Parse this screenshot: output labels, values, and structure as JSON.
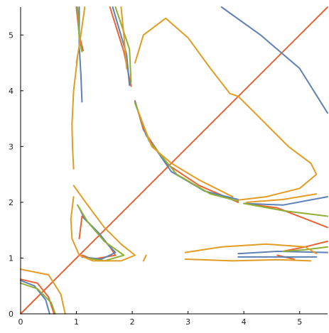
{
  "chart_data": {
    "type": "line",
    "title": "",
    "xlabel": "",
    "ylabel": "",
    "xlim": [
      0,
      5.5
    ],
    "ylim": [
      0,
      5.5
    ],
    "xticks": [
      0,
      1,
      2,
      3,
      4,
      5
    ],
    "yticks": [
      0,
      1,
      2,
      3,
      4,
      5
    ],
    "grid": false,
    "legend": "none",
    "colors": {
      "blue": "#5e81b5",
      "green": "#8fb032",
      "orange": "#e19c24",
      "red": "#eb6235"
    },
    "series": [
      {
        "color": "#eb6235",
        "segments": [
          [
            [
              0.0,
              0.0
            ],
            [
              1.0,
              1.0
            ],
            [
              2.0,
              2.0
            ],
            [
              3.0,
              3.0
            ],
            [
              4.0,
              4.0
            ],
            [
              5.0,
              5.0
            ],
            [
              5.5,
              5.5
            ]
          ],
          [
            [
              0.0,
              0.62
            ],
            [
              0.3,
              0.55
            ],
            [
              0.5,
              0.3
            ],
            [
              0.6,
              0.0
            ]
          ],
          [
            [
              1.0,
              5.5
            ],
            [
              1.05,
              5.0
            ],
            [
              1.12,
              4.72
            ]
          ],
          [
            [
              1.6,
              5.5
            ],
            [
              1.85,
              4.7
            ],
            [
              1.98,
              4.08
            ]
          ],
          [
            [
              2.05,
              3.82
            ],
            [
              2.2,
              3.3
            ],
            [
              2.6,
              2.7
            ],
            [
              3.2,
              2.3
            ],
            [
              3.9,
              2.0
            ]
          ],
          [
            [
              4.0,
              1.98
            ],
            [
              4.6,
              1.9
            ],
            [
              5.5,
              1.55
            ]
          ],
          [
            [
              1.05,
              1.35
            ],
            [
              1.1,
              1.75
            ],
            [
              1.3,
              1.55
            ],
            [
              1.6,
              1.2
            ],
            [
              1.7,
              1.05
            ],
            [
              1.3,
              0.98
            ],
            [
              1.1,
              1.05
            ]
          ],
          [
            [
              4.7,
              1.12
            ],
            [
              5.1,
              1.2
            ],
            [
              5.5,
              1.3
            ]
          ],
          [
            [
              4.6,
              1.05
            ],
            [
              4.9,
              0.98
            ]
          ]
        ]
      },
      {
        "color": "#5e81b5",
        "segments": [
          [
            [
              0.0,
              0.6
            ],
            [
              0.25,
              0.5
            ],
            [
              0.45,
              0.25
            ],
            [
              0.52,
              0.0
            ]
          ],
          [
            [
              1.05,
              5.5
            ],
            [
              1.05,
              4.8
            ],
            [
              1.08,
              4.3
            ],
            [
              1.1,
              3.8
            ]
          ],
          [
            [
              1.65,
              5.5
            ],
            [
              1.9,
              4.65
            ],
            [
              1.95,
              4.1
            ]
          ],
          [
            [
              2.05,
              3.8
            ],
            [
              2.25,
              3.2
            ],
            [
              2.7,
              2.55
            ],
            [
              3.3,
              2.2
            ],
            [
              3.9,
              2.05
            ]
          ],
          [
            [
              4.0,
              1.98
            ],
            [
              4.7,
              1.95
            ],
            [
              5.5,
              2.1
            ]
          ],
          [
            [
              3.6,
              5.5
            ],
            [
              4.3,
              5.0
            ],
            [
              5.0,
              4.4
            ],
            [
              5.5,
              3.6
            ]
          ],
          [
            [
              1.05,
              1.9
            ],
            [
              1.15,
              1.7
            ],
            [
              1.4,
              1.45
            ],
            [
              1.6,
              1.2
            ],
            [
              1.7,
              1.1
            ],
            [
              1.45,
              0.98
            ],
            [
              1.1,
              1.02
            ]
          ],
          [
            [
              3.9,
              1.08
            ],
            [
              4.6,
              1.12
            ],
            [
              5.5,
              1.1
            ]
          ],
          [
            [
              3.9,
              1.02
            ],
            [
              4.6,
              1.02
            ],
            [
              5.3,
              1.02
            ]
          ]
        ]
      },
      {
        "color": "#8fb032",
        "segments": [
          [
            [
              0.0,
              0.55
            ],
            [
              0.3,
              0.45
            ],
            [
              0.55,
              0.2
            ],
            [
              0.62,
              0.0
            ]
          ],
          [
            [
              1.02,
              5.5
            ],
            [
              1.05,
              4.95
            ],
            [
              1.1,
              4.7
            ]
          ],
          [
            [
              1.7,
              5.5
            ],
            [
              1.95,
              4.75
            ],
            [
              1.98,
              4.15
            ]
          ],
          [
            [
              2.05,
              3.78
            ],
            [
              2.3,
              3.1
            ],
            [
              2.8,
              2.5
            ],
            [
              3.4,
              2.15
            ],
            [
              3.9,
              2.02
            ]
          ],
          [
            [
              4.0,
              1.98
            ],
            [
              4.7,
              1.85
            ],
            [
              5.5,
              1.75
            ]
          ],
          [
            [
              1.02,
              1.95
            ],
            [
              1.2,
              1.65
            ],
            [
              1.5,
              1.3
            ],
            [
              1.85,
              1.05
            ],
            [
              1.5,
              0.95
            ],
            [
              1.2,
              1.0
            ]
          ],
          [
            [
              4.7,
              1.12
            ],
            [
              5.1,
              1.15
            ],
            [
              5.5,
              1.2
            ]
          ]
        ]
      },
      {
        "color": "#e19c24",
        "segments": [
          [
            [
              0.0,
              0.8
            ],
            [
              0.5,
              0.7
            ],
            [
              0.72,
              0.35
            ],
            [
              0.8,
              0.0
            ]
          ],
          [
            [
              1.02,
              4.6
            ],
            [
              0.95,
              4.0
            ],
            [
              0.92,
              3.4
            ],
            [
              0.93,
              3.0
            ],
            [
              0.95,
              2.6
            ]
          ],
          [
            [
              1.0,
              4.5
            ],
            [
              1.05,
              4.8
            ],
            [
              1.15,
              5.5
            ]
          ],
          [
            [
              1.8,
              5.5
            ],
            [
              1.85,
              5.0
            ],
            [
              1.9,
              4.4
            ]
          ],
          [
            [
              2.05,
              4.5
            ],
            [
              2.2,
              5.0
            ],
            [
              2.6,
              5.3
            ],
            [
              3.0,
              4.95
            ],
            [
              3.4,
              4.4
            ],
            [
              3.75,
              3.95
            ],
            [
              3.9,
              3.9
            ],
            [
              4.3,
              3.5
            ],
            [
              4.8,
              3.0
            ],
            [
              5.2,
              2.7
            ],
            [
              5.3,
              2.5
            ],
            [
              5.0,
              2.25
            ],
            [
              4.4,
              2.1
            ],
            [
              3.9,
              2.04
            ]
          ],
          [
            [
              4.05,
              2.0
            ],
            [
              4.7,
              2.05
            ],
            [
              5.3,
              2.15
            ]
          ],
          [
            [
              2.1,
              3.65
            ],
            [
              2.35,
              3.0
            ],
            [
              2.7,
              2.7
            ],
            [
              3.2,
              2.4
            ],
            [
              3.8,
              2.1
            ]
          ],
          [
            [
              0.95,
              2.3
            ],
            [
              1.2,
              1.95
            ],
            [
              1.5,
              1.55
            ],
            [
              1.8,
              1.25
            ],
            [
              2.05,
              1.05
            ],
            [
              1.8,
              0.95
            ],
            [
              1.3,
              0.95
            ],
            [
              1.05,
              1.05
            ],
            [
              0.92,
              1.35
            ],
            [
              0.9,
              1.7
            ],
            [
              0.95,
              2.1
            ]
          ],
          [
            [
              2.25,
              1.05
            ],
            [
              2.2,
              0.95
            ]
          ],
          [
            [
              2.95,
              1.1
            ],
            [
              3.6,
              1.2
            ],
            [
              4.4,
              1.25
            ],
            [
              5.1,
              1.2
            ],
            [
              5.3,
              1.08
            ]
          ],
          [
            [
              2.95,
              0.98
            ],
            [
              3.8,
              0.95
            ],
            [
              4.6,
              0.97
            ],
            [
              5.2,
              0.95
            ]
          ]
        ]
      }
    ]
  }
}
